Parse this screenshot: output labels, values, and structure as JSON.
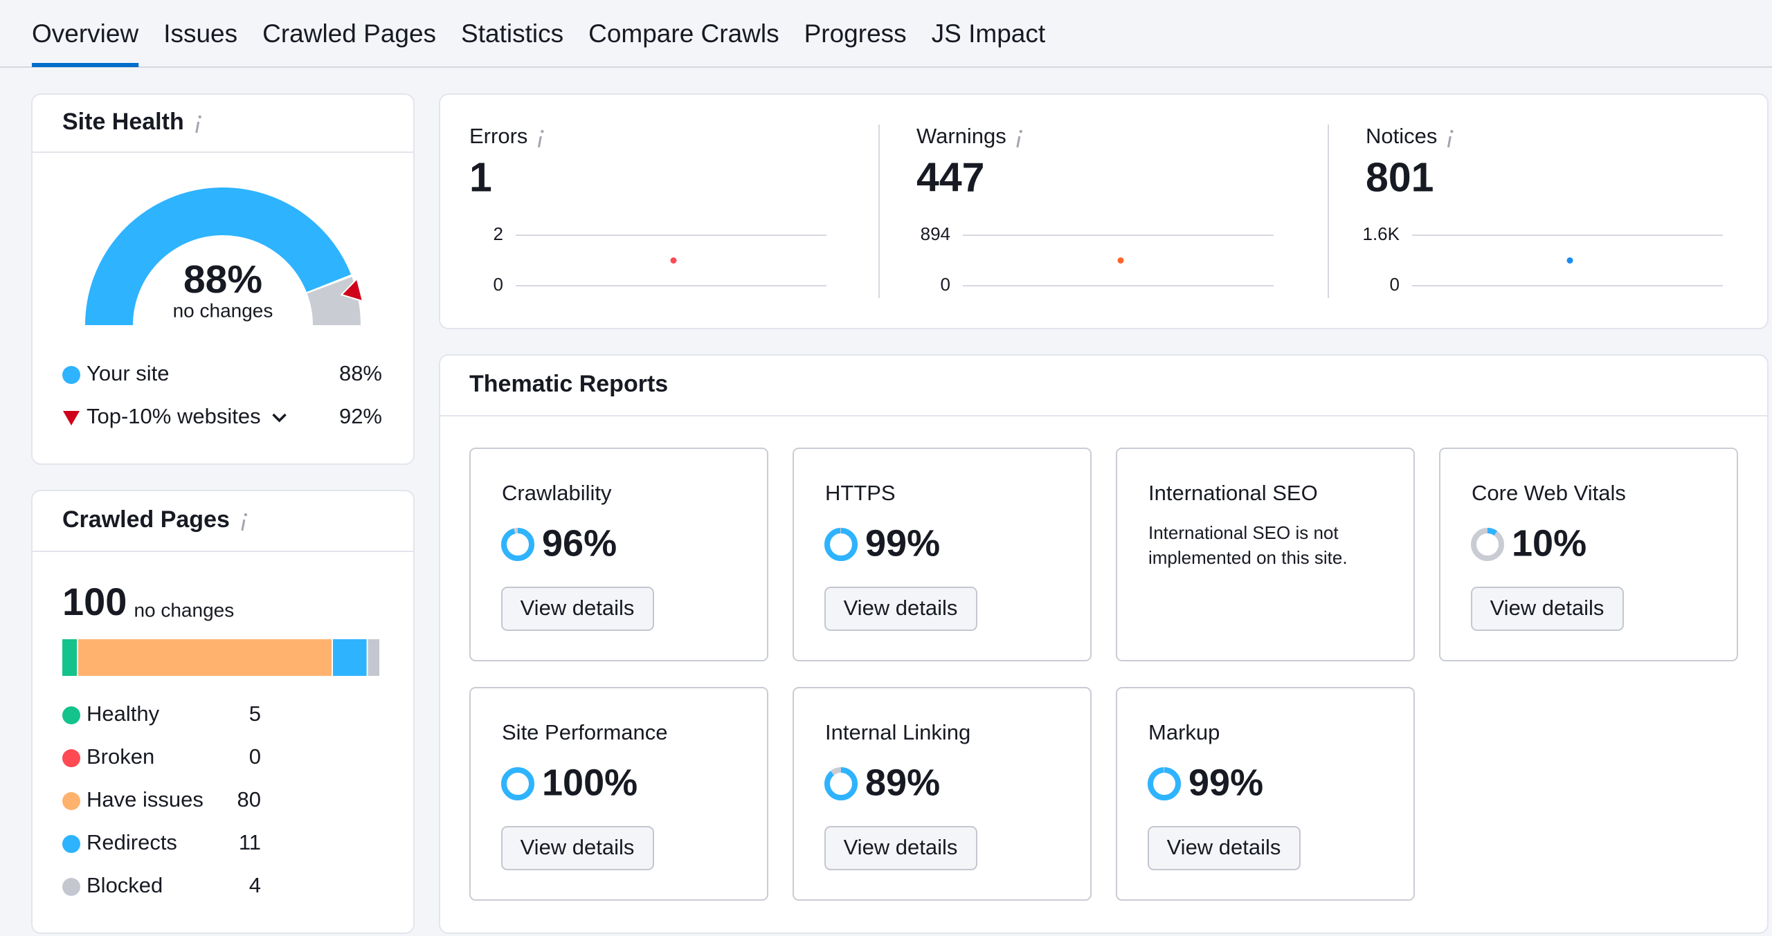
{
  "tabs": [
    "Overview",
    "Issues",
    "Crawled Pages",
    "Statistics",
    "Compare Crawls",
    "Progress",
    "JS Impact"
  ],
  "site_health": {
    "title": "Site Health",
    "score": {
      "value": 88,
      "label": "88%"
    },
    "status": "no changes",
    "legend": [
      {
        "name": "Your site",
        "color": "#2eb3ff",
        "value": {
          "value": 88,
          "label": "88%"
        }
      },
      {
        "name": "Top-10% websites",
        "color": "#d0021b",
        "value": {
          "value": 92,
          "label": "92%"
        }
      }
    ]
  },
  "crawled_pages": {
    "title": "Crawled Pages",
    "total": 100,
    "status": "no changes",
    "segments": [
      {
        "name": "Healthy",
        "color": "#13c38b",
        "value": 5
      },
      {
        "name": "Broken",
        "color": "#ff4953",
        "value": 0
      },
      {
        "name": "Have issues",
        "color": "#ffb26e",
        "value": 80
      },
      {
        "name": "Redirects",
        "color": "#2eb3ff",
        "value": 11
      },
      {
        "name": "Blocked",
        "color": "#c4c7cf",
        "value": 4
      }
    ]
  },
  "issues": [
    {
      "name": "Errors",
      "color": "#ff4953",
      "value": 1,
      "ylim": [
        0,
        2
      ],
      "yticks": [
        0,
        2
      ]
    },
    {
      "name": "Warnings",
      "color": "#ff642d",
      "value": 447,
      "ylim": [
        0,
        894
      ],
      "yticks": [
        0,
        894
      ]
    },
    {
      "name": "Notices",
      "color": "#1a8cf0",
      "value": 801,
      "ylim": [
        0,
        1602
      ],
      "yticks": [
        0,
        {
          "value": 1602,
          "label": "1.6K"
        }
      ]
    }
  ],
  "thematic_reports": {
    "title": "Thematic Reports",
    "button": "View details",
    "reports": [
      {
        "name": "Crawlability",
        "score": {
          "value": 96,
          "label": "96%"
        }
      },
      {
        "name": "HTTPS",
        "score": {
          "value": 99,
          "label": "99%"
        }
      },
      {
        "name": "International SEO",
        "description": [
          "International SEO is not",
          "implemented on this site."
        ]
      },
      {
        "name": "Core Web Vitals",
        "score": {
          "value": 10,
          "label": "10%"
        }
      },
      {
        "name": "Site Performance",
        "score": {
          "value": 100,
          "label": "100%"
        }
      },
      {
        "name": "Internal Linking",
        "score": {
          "value": 89,
          "label": "89%"
        }
      },
      {
        "name": "Markup",
        "score": {
          "value": 99,
          "label": "99%"
        }
      }
    ]
  }
}
